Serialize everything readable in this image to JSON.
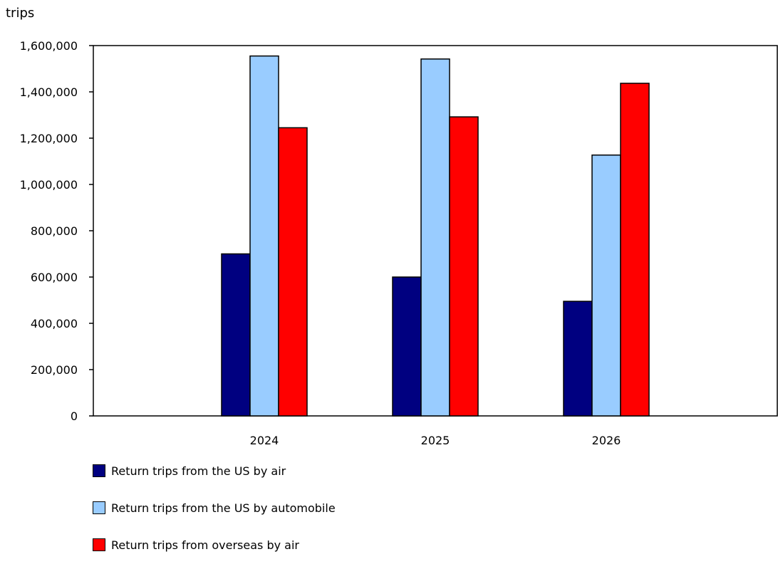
{
  "chart_data": {
    "type": "bar",
    "title": "",
    "ylabel": "trips",
    "xlabel": "",
    "categories": [
      "2024",
      "2025",
      "2026"
    ],
    "ylim": [
      0,
      1600000
    ],
    "yticks": [
      0,
      200000,
      400000,
      600000,
      800000,
      1000000,
      1200000,
      1400000,
      1600000
    ],
    "ytick_labels": [
      "0",
      "200,000",
      "400,000",
      "600,000",
      "800,000",
      "1,000,000",
      "1,200,000",
      "1,400,000",
      "1,600,000"
    ],
    "grid": false,
    "legend_position": "bottom",
    "series": [
      {
        "name": "Return trips from the US by air",
        "color": "#000080",
        "values": [
          700000,
          600000,
          495000
        ]
      },
      {
        "name": "Return trips from the US by automobile",
        "color": "#99ccff",
        "values": [
          1555000,
          1542000,
          1127000
        ]
      },
      {
        "name": "Return trips from overseas by air",
        "color": "#ff0000",
        "values": [
          1245000,
          1292000,
          1437000
        ]
      }
    ]
  }
}
